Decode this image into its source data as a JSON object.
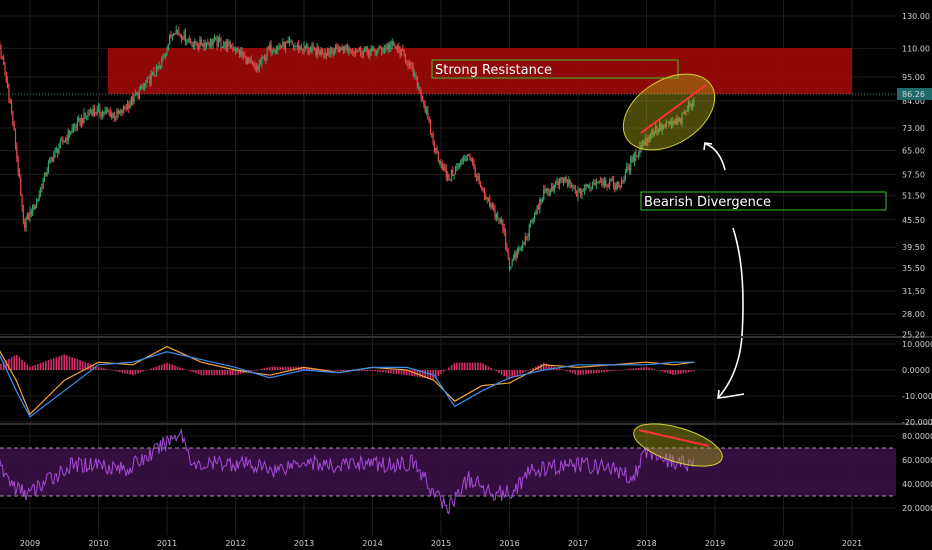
{
  "chart_data": [
    {
      "type": "candlestick",
      "panel": "price",
      "x_ticks": [
        "2009",
        "2010",
        "2011",
        "2012",
        "2013",
        "2014",
        "2015",
        "2016",
        "2017",
        "2018",
        "2019",
        "2020",
        "2021"
      ],
      "y_ticks": [
        "130.00",
        "110.00",
        "95.00",
        "84.00",
        "73.00",
        "65.00",
        "57.50",
        "51.50",
        "45.50",
        "39.50",
        "35.50",
        "31.50",
        "28.00",
        "25.20"
      ],
      "last_price": "86.26",
      "series": [
        {
          "name": "",
          "x": [
            2008.5,
            2008.7,
            2008.9,
            2009.1,
            2009.3,
            2009.6,
            2009.9,
            2010.3,
            2010.6,
            2010.9,
            2011.1,
            2011.4,
            2011.7,
            2012.0,
            2012.3,
            2012.5,
            2012.8,
            2013.2,
            2013.6,
            2014.0,
            2014.3,
            2014.5,
            2014.7,
            2014.9,
            2015.1,
            2015.4,
            2015.6,
            2015.9,
            2016.0,
            2016.2,
            2016.5,
            2016.8,
            2017.0,
            2017.3,
            2017.6,
            2017.9,
            2018.1,
            2018.3,
            2018.5,
            2018.7
          ],
          "y": [
            120,
            85,
            44,
            50,
            62,
            72,
            80,
            78,
            88,
            100,
            122,
            112,
            114,
            110,
            98,
            110,
            112,
            108,
            110,
            108,
            112,
            104,
            88,
            66,
            56,
            64,
            52,
            44,
            36,
            40,
            52,
            56,
            52,
            56,
            54,
            66,
            72,
            74,
            76,
            86
          ]
        }
      ],
      "zones": [
        {
          "label": "Strong Resistance",
          "y_range": [
            84,
            110
          ],
          "color": "#9c0a0a"
        }
      ],
      "annotations": [
        "Strong Resistance",
        "Bearish Divergence"
      ]
    },
    {
      "type": "line",
      "panel": "macd",
      "y_ticks": [
        "10.0000",
        "0.0000",
        "-10.0000",
        "-20.0000"
      ],
      "series": [
        {
          "name": "",
          "color": "#f2a33a",
          "x": [
            2008.5,
            2008.8,
            2009.0,
            2009.5,
            2010.0,
            2010.5,
            2011.0,
            2011.5,
            2012.0,
            2012.5,
            2013.0,
            2013.5,
            2014.0,
            2014.5,
            2014.9,
            2015.2,
            2015.6,
            2016.0,
            2016.5,
            2017.0,
            2017.5,
            2018.0,
            2018.4,
            2018.7
          ],
          "y": [
            10,
            -4,
            -17,
            -4,
            3,
            2,
            9,
            3,
            0,
            -2,
            1,
            -1,
            1,
            0,
            -4,
            -12,
            -6,
            -5,
            2,
            1,
            2,
            3,
            2,
            3
          ]
        },
        {
          "name": "",
          "color": "#3d8ef0",
          "x": [
            2008.5,
            2008.8,
            2009.0,
            2009.5,
            2010.0,
            2010.5,
            2011.0,
            2011.5,
            2012.0,
            2012.5,
            2013.0,
            2013.5,
            2014.0,
            2014.5,
            2014.9,
            2015.2,
            2015.6,
            2016.0,
            2016.5,
            2017.0,
            2017.5,
            2018.0,
            2018.4,
            2018.7
          ],
          "y": [
            9,
            -8,
            -18,
            -8,
            2,
            3,
            7,
            4,
            1,
            -3,
            0,
            -1,
            1,
            1,
            -2,
            -14,
            -8,
            -3,
            0,
            2,
            2,
            2,
            3,
            3
          ]
        }
      ]
    },
    {
      "type": "line",
      "panel": "rsi",
      "y_ticks": [
        "80.0000",
        "60.0000",
        "40.0000",
        "20.0000"
      ],
      "band": [
        30,
        70
      ],
      "series": [
        {
          "name": "",
          "color": "#a54bd6",
          "x": [
            2008.5,
            2008.8,
            2009.0,
            2009.3,
            2009.6,
            2010.0,
            2010.4,
            2010.8,
            2011.2,
            2011.4,
            2011.8,
            2012.2,
            2012.6,
            2013.0,
            2013.4,
            2013.8,
            2014.2,
            2014.6,
            2014.9,
            2015.1,
            2015.4,
            2015.7,
            2016.0,
            2016.3,
            2016.7,
            2017.0,
            2017.4,
            2017.8,
            2018.0,
            2018.3,
            2018.6,
            2018.7
          ],
          "y": [
            58,
            36,
            32,
            45,
            55,
            57,
            52,
            66,
            84,
            54,
            58,
            56,
            52,
            60,
            54,
            58,
            56,
            58,
            32,
            20,
            44,
            34,
            32,
            50,
            54,
            56,
            54,
            46,
            68,
            60,
            56,
            64
          ]
        }
      ]
    }
  ]
}
